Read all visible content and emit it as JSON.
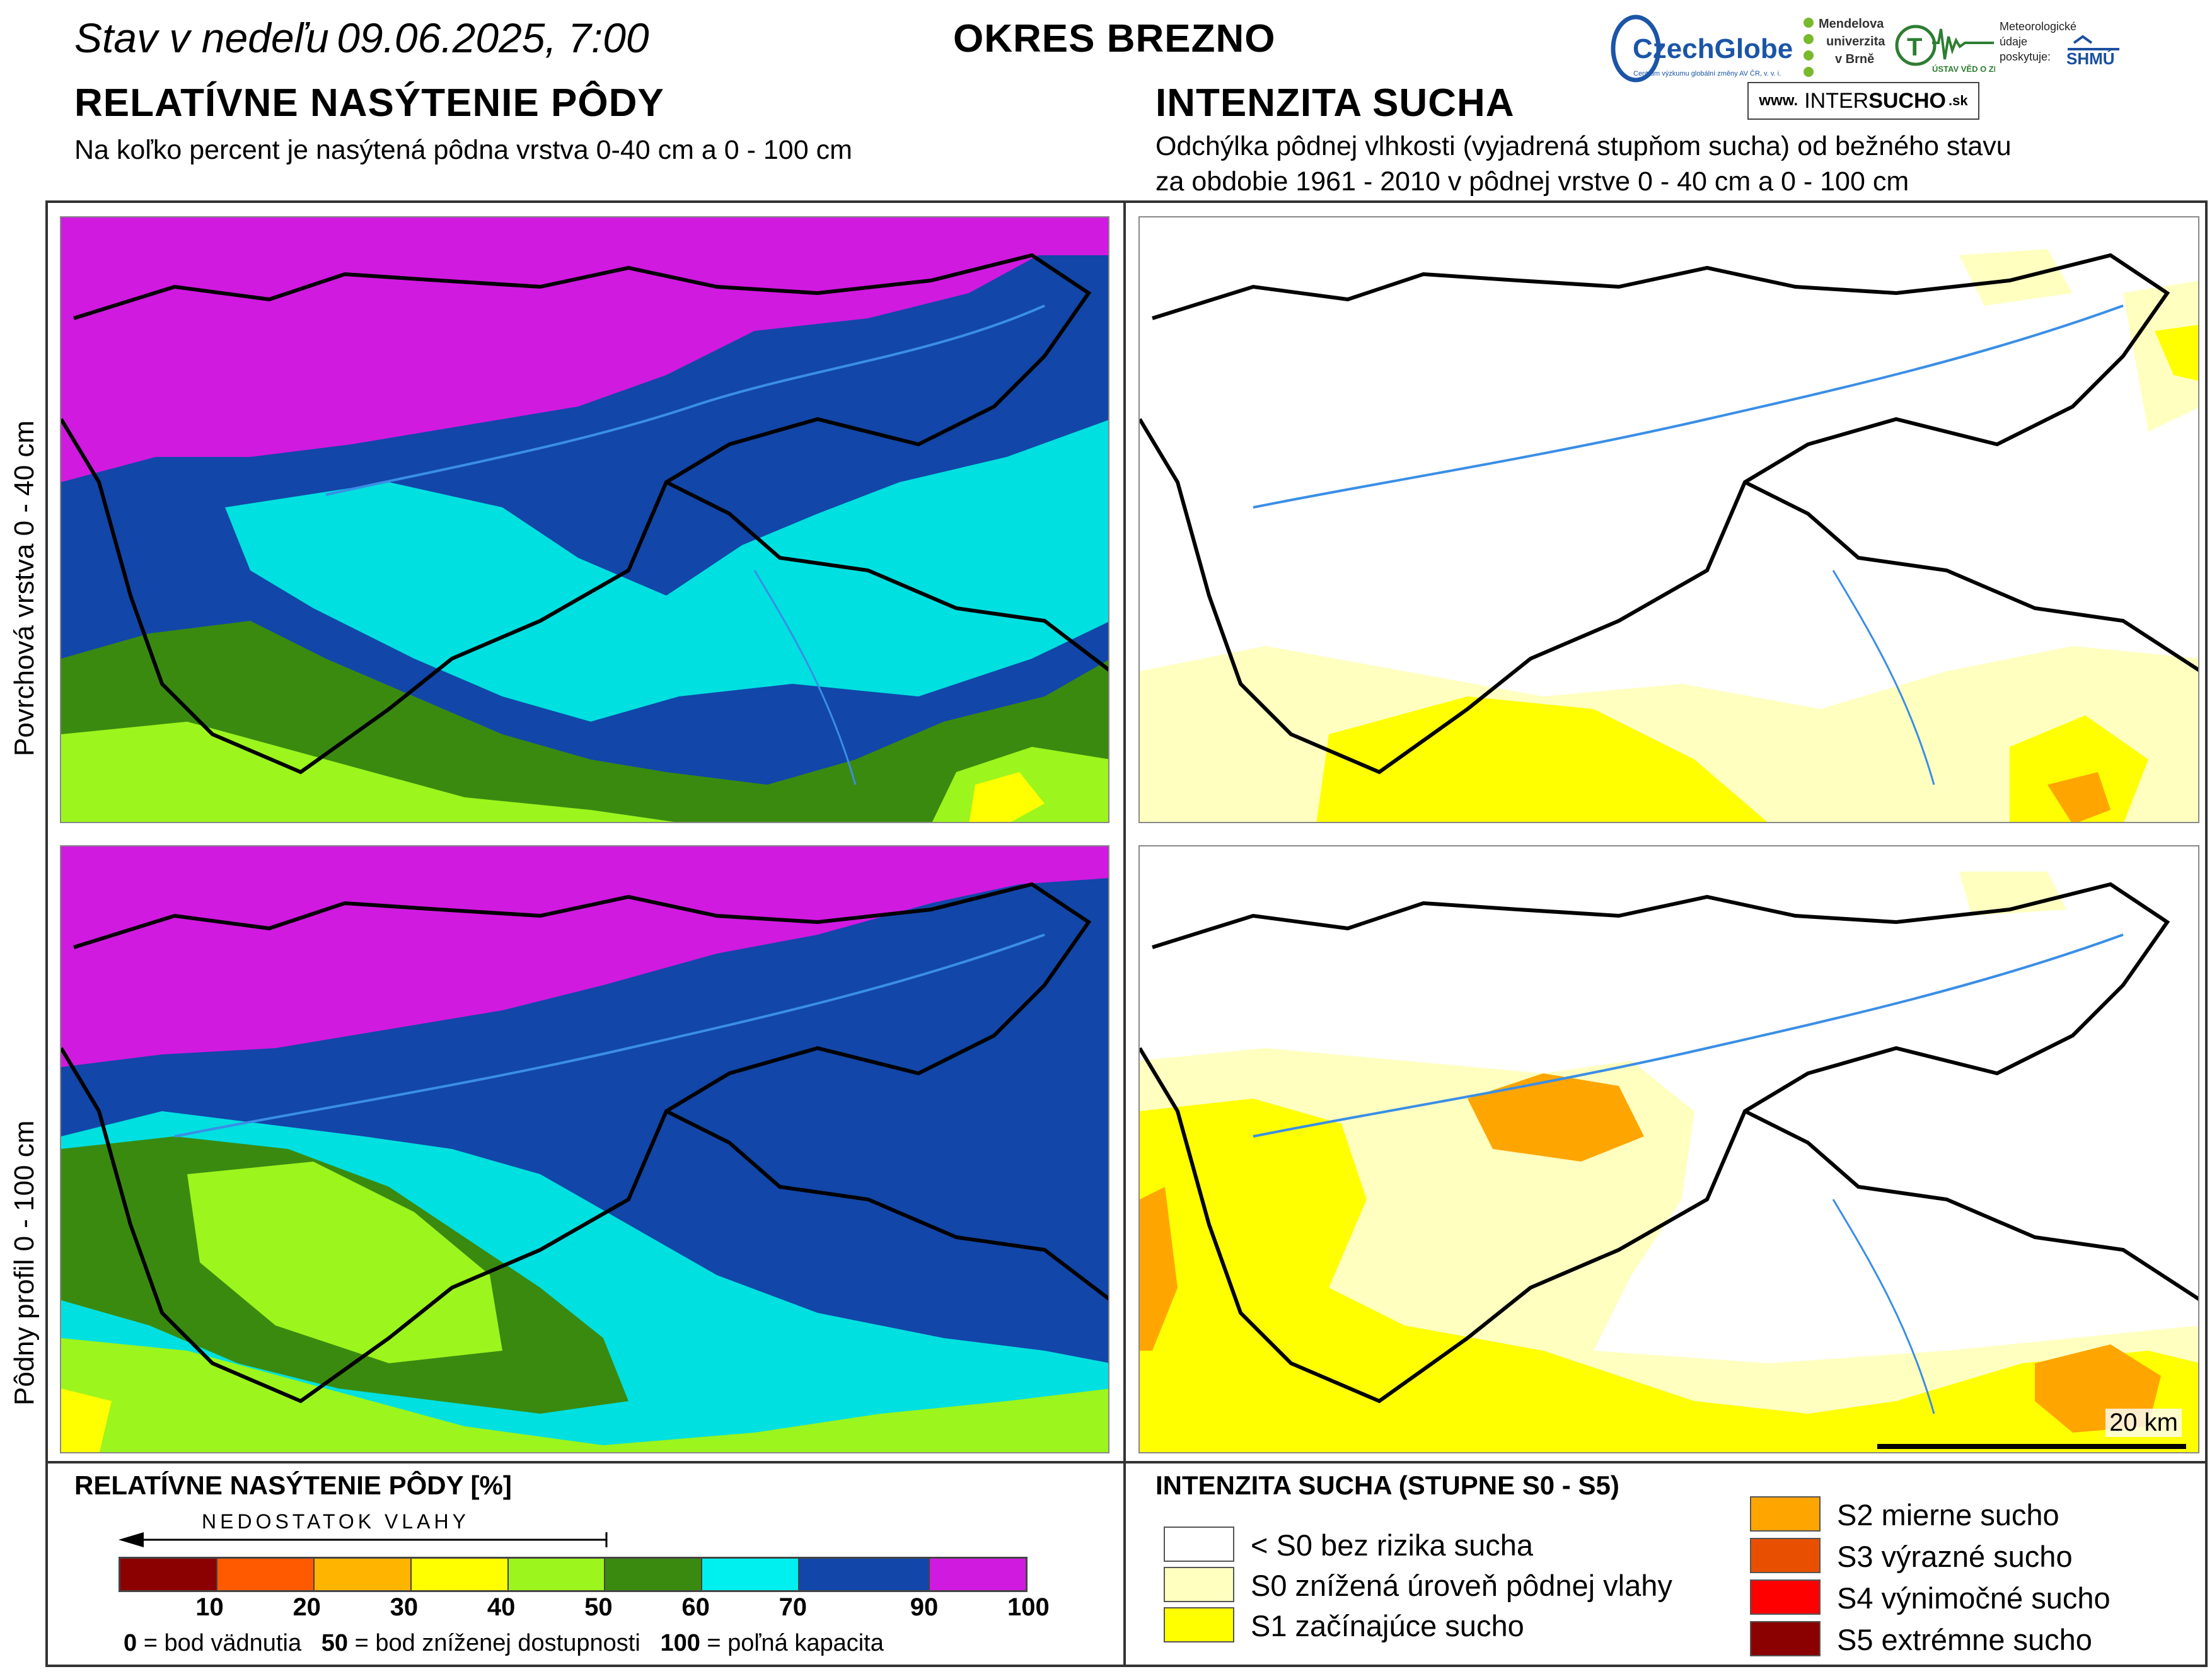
{
  "header": {
    "status_label": "Stav v nedeľu",
    "date_time": "09.06.2025, 7:00",
    "district": "OKRES  BREZNO"
  },
  "left": {
    "title": "RELATÍVNE NASÝTENIE PÔDY",
    "subtitle": "Na koľko percent je nasýtená pôdna vrstva 0-40 cm a 0 - 100 cm"
  },
  "right": {
    "title": "INTENZITA SUCHA",
    "subtitle_line1": "Odchýlka pôdnej vlhkosti (vyjadrená stupňom sucha) od bežného stavu",
    "subtitle_line2": "za obdobie 1961 - 2010 v pôdnej vrstve 0 - 40 cm a 0 - 100 cm"
  },
  "row_labels": {
    "top": "Povrchová vrstva 0 - 40 cm",
    "bottom": "Pôdny profil 0 - 100 cm"
  },
  "logos": {
    "czechglobe": "CzechGlobe",
    "czechglobe_sub": "Centrum výzkumu globální změny AV ČR, v. v. i.",
    "mendel_1": "Mendelova",
    "mendel_2": "univerzita",
    "mendel_3": "v Brně",
    "uvz": "ÚSTAV VĚD O ZEMI",
    "meteo_1": "Meteorologické",
    "meteo_2": "údaje",
    "meteo_3": "poskytuje:",
    "shmu": "SHMÚ",
    "intersucho_www": "www.",
    "intersucho_a": "INTER",
    "intersucho_b": "SUCHO",
    "intersucho_c": ".sk"
  },
  "scale_bar": "20 km",
  "legend_left": {
    "title": "RELATÍVNE NASÝTENIE PÔDY [%]",
    "arrow_label": "NEDOSTATOK VLAHY",
    "bins": [
      {
        "color": "#8b0000"
      },
      {
        "color": "#ff5a00"
      },
      {
        "color": "#ffb400"
      },
      {
        "color": "#ffff00"
      },
      {
        "color": "#9cf51c"
      },
      {
        "color": "#3a8a10"
      },
      {
        "color": "#00f0f0"
      },
      {
        "color": "#1246a8"
      },
      {
        "color": "#d01ae0"
      }
    ],
    "ticks": [
      "10",
      "20",
      "30",
      "40",
      "50",
      "60",
      "70",
      "90",
      "100"
    ],
    "note_0_num": "0",
    "note_0_text": " = bod vädnutia",
    "note_50_num": "50",
    "note_50_text": " = bod zníženej dostupnosti",
    "note_100_num": "100",
    "note_100_text": " = poľná kapacita"
  },
  "legend_right": {
    "title": "INTENZITA SUCHA (STUPNE S0 - S5)",
    "items": [
      {
        "label": "< S0 bez rizika sucha",
        "color": "#ffffff"
      },
      {
        "label": "S0 znížená úroveň pôdnej vlahy",
        "color": "#ffffc0"
      },
      {
        "label": "S1 začínajúce sucho",
        "color": "#ffff00"
      },
      {
        "label": "S2 mierne sucho",
        "color": "#ffa500"
      },
      {
        "label": "S3 výrazné sucho",
        "color": "#e85000"
      },
      {
        "label": "S4 výnimočné sucho",
        "color": "#ff0000"
      },
      {
        "label": "S5 extrémne sucho",
        "color": "#8b0000"
      }
    ]
  }
}
